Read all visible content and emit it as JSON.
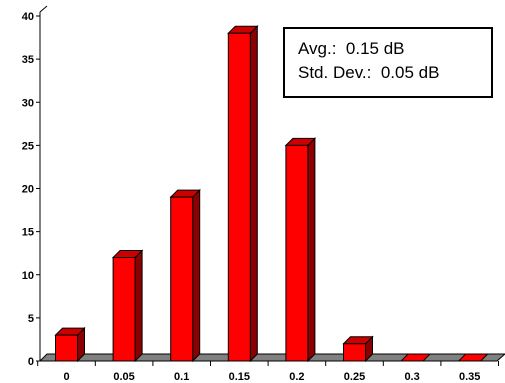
{
  "chart_data": {
    "type": "bar",
    "categories": [
      "0",
      "0.05",
      "0.1",
      "0.15",
      "0.2",
      "0.25",
      "0.3",
      "0.35"
    ],
    "values": [
      3,
      12,
      19,
      38,
      25,
      2,
      0,
      0
    ],
    "title": "",
    "xlabel": "",
    "ylabel": "",
    "ylim": [
      0,
      40
    ],
    "yticks": [
      "0",
      "5",
      "10",
      "15",
      "20",
      "25",
      "30",
      "35",
      "40"
    ],
    "grid": false,
    "style": "3d",
    "colors": {
      "bar_front": "#ff0000",
      "bar_side": "#8b0000",
      "bar_top": "#cc0000",
      "floor": "#808080"
    }
  },
  "stats": {
    "avg_label": "Avg.:",
    "avg_value": "0.15 dB",
    "std_label": "Std. Dev.:",
    "std_value": "0.05 dB"
  }
}
